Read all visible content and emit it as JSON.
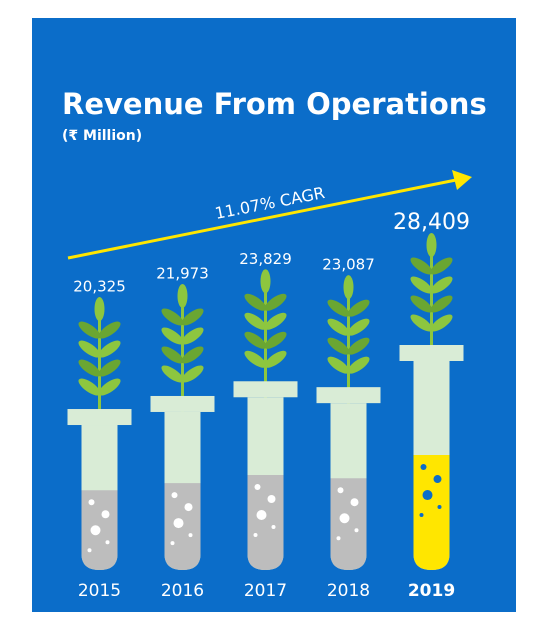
{
  "chart_data": {
    "type": "tube",
    "title": "Revenue From Operations",
    "subtitle": "(₹ Million)",
    "annotation": "11.07% CAGR",
    "categories": [
      "2015",
      "2016",
      "2017",
      "2018",
      "2019"
    ],
    "values": [
      20325,
      21973,
      23829,
      23087,
      28409
    ],
    "value_labels": [
      "20,325",
      "21,973",
      "23,829",
      "23,087",
      "28,409"
    ],
    "colors": [
      "#bdbdbd",
      "#bdbdbd",
      "#bdbdbd",
      "#bdbdbd",
      "#ffe600"
    ],
    "label_colors": [
      "#ffffff",
      "#ffffff",
      "#ffffff",
      "#ffffff",
      "#ffe600"
    ]
  }
}
